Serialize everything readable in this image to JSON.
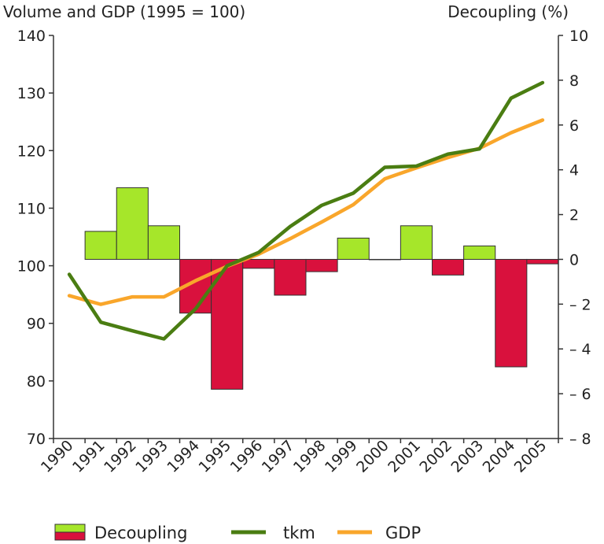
{
  "chart_data": {
    "type": "bar+line",
    "title_left": "Volume and GDP (1995 = 100)",
    "title_right": "Decoupling (%)",
    "categories": [
      "1990",
      "1991",
      "1992",
      "1993",
      "1994",
      "1995",
      "1996",
      "1997",
      "1998",
      "1999",
      "2000",
      "2001",
      "2002",
      "2003",
      "2004",
      "2005"
    ],
    "left_axis": {
      "min": 70,
      "max": 140,
      "ticks": [
        70,
        80,
        90,
        100,
        110,
        120,
        130,
        140
      ]
    },
    "right_axis": {
      "min": -8,
      "max": 10,
      "ticks": [
        -8,
        -6,
        -4,
        -2,
        0,
        2,
        4,
        6,
        8,
        10
      ],
      "tick_labels": [
        "– 8",
        "– 6",
        "– 4",
        "– 2",
        "0",
        "2",
        "4",
        "6",
        "8",
        "10"
      ]
    },
    "bar_series": {
      "name": "Decoupling",
      "axis": "right",
      "positive_color": "#a6e62a",
      "negative_color": "#d9113d",
      "values": [
        null,
        1.25,
        3.2,
        1.5,
        -2.4,
        -5.8,
        -0.4,
        -1.6,
        -0.55,
        0.95,
        0.0,
        1.5,
        -0.7,
        0.6,
        -4.8,
        -0.2
      ]
    },
    "line_series": [
      {
        "name": "tkm",
        "axis": "left",
        "color": "#4a7d12",
        "values": [
          98.5,
          90.2,
          88.7,
          87.3,
          92.5,
          100.0,
          102.3,
          106.8,
          110.5,
          112.6,
          117.1,
          117.3,
          119.4,
          120.3,
          129.1,
          131.8
        ]
      },
      {
        "name": "GDP",
        "axis": "left",
        "color": "#f9a62b",
        "values": [
          94.8,
          93.3,
          94.6,
          94.6,
          97.4,
          99.9,
          102.0,
          104.7,
          107.6,
          110.6,
          115.1,
          117.0,
          118.8,
          120.4,
          123.1,
          125.3
        ]
      }
    ],
    "legend": {
      "placement": "bottom",
      "items": [
        {
          "label": "Decoupling"
        },
        {
          "label": "tkm"
        },
        {
          "label": "GDP"
        }
      ]
    },
    "grid": false
  }
}
